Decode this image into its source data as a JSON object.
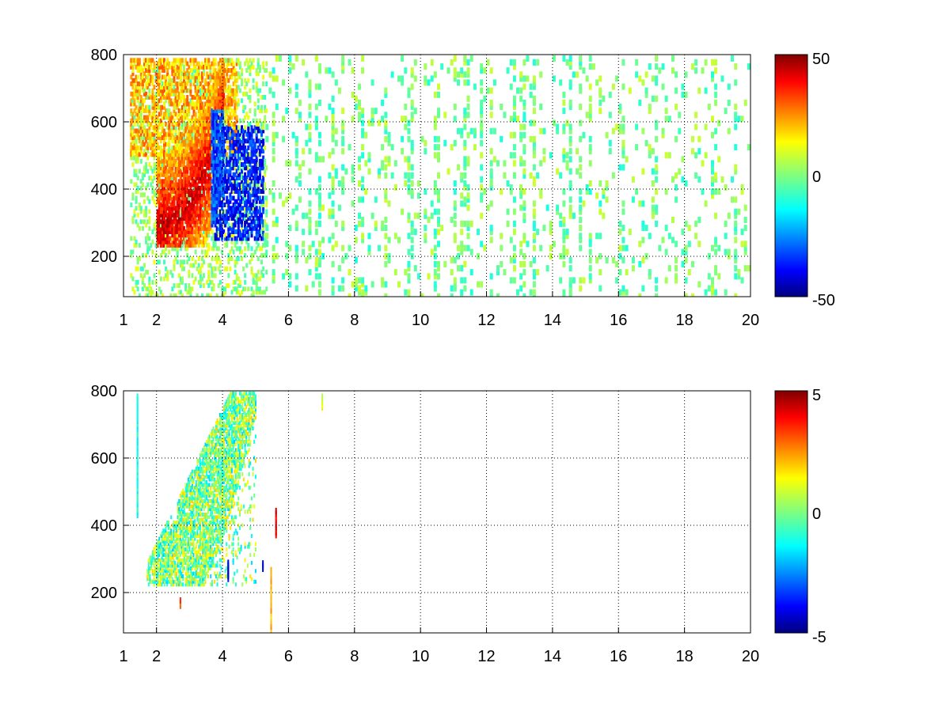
{
  "chart_data": [
    {
      "type": "heatmap",
      "title": "",
      "xlabel": "",
      "ylabel": "",
      "xlim": [
        1,
        20
      ],
      "ylim": [
        80,
        800
      ],
      "x_ticks": [
        1,
        2,
        4,
        6,
        8,
        10,
        12,
        14,
        16,
        18,
        20
      ],
      "y_ticks": [
        200,
        400,
        600,
        800
      ],
      "grid": true,
      "colormap": "jet",
      "clim": [
        -50,
        50
      ],
      "colorbar_ticks": [
        50,
        0,
        -50
      ],
      "regions": [
        {
          "description": "positive ridge",
          "x_range": [
            2.0,
            4.0
          ],
          "y_range": [
            230,
            800
          ],
          "value": 40
        },
        {
          "description": "negative band",
          "x_range": [
            3.7,
            5.2
          ],
          "y_range": [
            250,
            600
          ],
          "value": -35
        },
        {
          "description": "scattered weak values",
          "x_range": [
            5,
            20
          ],
          "y_range": [
            80,
            800
          ],
          "value_range": [
            -10,
            10
          ]
        }
      ]
    },
    {
      "type": "heatmap",
      "title": "",
      "xlabel": "",
      "ylabel": "",
      "xlim": [
        1,
        20
      ],
      "ylim": [
        80,
        800
      ],
      "x_ticks": [
        1,
        2,
        4,
        6,
        8,
        10,
        12,
        14,
        16,
        18,
        20
      ],
      "y_ticks": [
        200,
        400,
        600,
        800
      ],
      "grid": true,
      "colormap": "jet",
      "clim": [
        -5,
        5
      ],
      "colorbar_ticks": [
        5,
        0,
        -5
      ],
      "regions": [
        {
          "description": "main cluster",
          "x_range": [
            1.7,
            5.0
          ],
          "y_range": [
            230,
            800
          ],
          "value_range": [
            -2,
            2
          ]
        },
        {
          "description": "isolated spikes",
          "x_range": [
            5.5,
            5.8
          ],
          "y_range": [
            100,
            460
          ],
          "value_range": [
            -5,
            5
          ]
        }
      ]
    }
  ]
}
